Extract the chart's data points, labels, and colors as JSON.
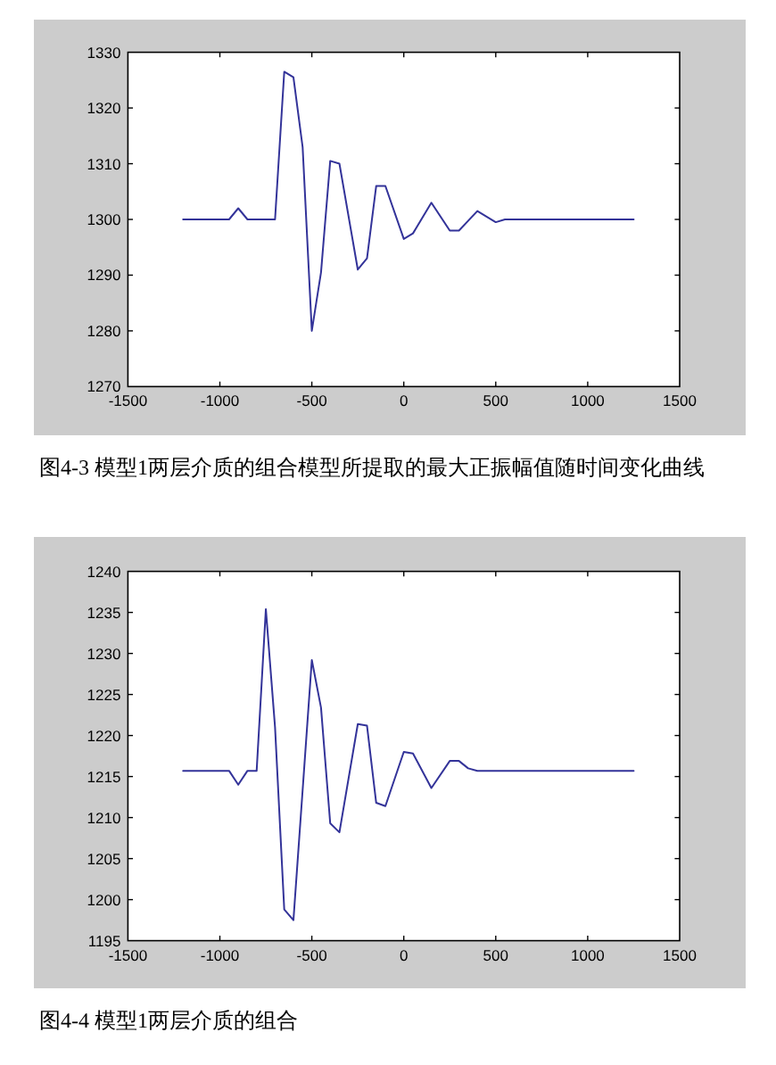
{
  "chart_data": [
    {
      "type": "line",
      "x": [
        -1200,
        -950,
        -900,
        -850,
        -700,
        -650,
        -600,
        -550,
        -500,
        -450,
        -400,
        -350,
        -250,
        -200,
        -150,
        -100,
        0,
        50,
        150,
        250,
        300,
        400,
        500,
        550,
        1250
      ],
      "values": [
        1300,
        1300,
        1302,
        1300,
        1300,
        1326.5,
        1325.5,
        1313,
        1280,
        1290.5,
        1310.5,
        1310,
        1291,
        1293,
        1306,
        1306,
        1296.5,
        1297.5,
        1303,
        1298,
        1298,
        1301.5,
        1299.5,
        1300,
        1300
      ],
      "color": "#333399",
      "xlim": [
        -1500,
        1500
      ],
      "xticks": [
        -1500,
        -1000,
        -500,
        0,
        500,
        1000,
        1500
      ],
      "ylim": [
        1270,
        1330
      ],
      "yticks": [
        1270,
        1280,
        1290,
        1300,
        1310,
        1320,
        1330
      ],
      "annotations": [
        "图4-3 模型1两层介质的组合模型所提取的最大正振幅值随时间变化曲线"
      ]
    },
    {
      "type": "line",
      "x": [
        -1200,
        -950,
        -900,
        -850,
        -800,
        -750,
        -700,
        -650,
        -600,
        -500,
        -450,
        -400,
        -350,
        -250,
        -200,
        -150,
        -100,
        0,
        50,
        150,
        250,
        300,
        350,
        400,
        1250
      ],
      "values": [
        1215.7,
        1215.7,
        1214,
        1215.7,
        1215.7,
        1235.4,
        1221,
        1198.8,
        1197.5,
        1229.2,
        1223.4,
        1209.3,
        1208.2,
        1221.4,
        1221.2,
        1211.8,
        1211.4,
        1218,
        1217.8,
        1213.6,
        1216.9,
        1216.9,
        1216,
        1215.7,
        1215.7
      ],
      "color": "#333399",
      "xlim": [
        -1500,
        1500
      ],
      "xticks": [
        -1500,
        -1000,
        -500,
        0,
        500,
        1000,
        1500
      ],
      "ylim": [
        1195,
        1240
      ],
      "yticks": [
        1195,
        1200,
        1205,
        1210,
        1215,
        1220,
        1225,
        1230,
        1235,
        1240
      ],
      "annotations": [
        "图4-4 模型1两层介质的组合"
      ]
    }
  ]
}
